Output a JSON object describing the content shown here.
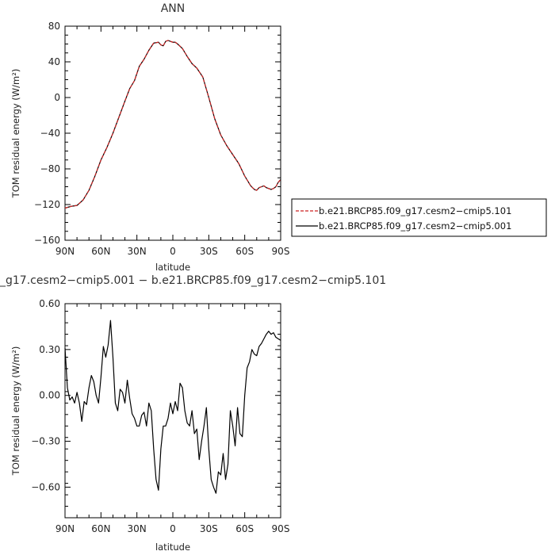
{
  "top_title": "ANN",
  "bottom_title": "_g17.cesm2−cmip5.001 − b.e21.BRCP85.f09_g17.cesm2−cmip5.101",
  "colors": {
    "series_101": "#cc2222",
    "series_001": "#000000",
    "axes": "#000000"
  },
  "chart_data": [
    {
      "type": "line",
      "title": "ANN",
      "xlabel": "latitude",
      "ylabel": "TOM residual energy (W/m²)",
      "xlim": [
        90,
        -90
      ],
      "ylim": [
        -160,
        80
      ],
      "x_tick_values": [
        90,
        60,
        30,
        0,
        -30,
        -60,
        -90
      ],
      "x_tick_labels": [
        "90N",
        "60N",
        "30N",
        "0",
        "30S",
        "60S",
        "90S"
      ],
      "y_tick_values": [
        80,
        40,
        0,
        -40,
        -80,
        -120,
        -160
      ],
      "y_tick_labels": [
        "80",
        "40",
        "0",
        "−40",
        "−80",
        "−120",
        "−160"
      ],
      "legend_placement": "right",
      "series": [
        {
          "name": "b.e21.BRCP85.f09_g17.cesm2−cmip5.101",
          "style": "dashed",
          "x": [
            90,
            85,
            80,
            75,
            70,
            65,
            60,
            55,
            50,
            45,
            40,
            36,
            32,
            28,
            24,
            20,
            16,
            12,
            10,
            8,
            6,
            4,
            2,
            0,
            -2,
            -4,
            -8,
            -12,
            -16,
            -20,
            -25,
            -30,
            -35,
            -40,
            -45,
            -50,
            -55,
            -60,
            -65,
            -68,
            -70,
            -72,
            -74,
            -76,
            -78,
            -80,
            -82,
            -84,
            -86,
            -88,
            -90
          ],
          "y": [
            -124,
            -122,
            -121,
            -115,
            -104,
            -88,
            -70,
            -56,
            -40,
            -22,
            -4,
            10,
            19,
            35,
            43,
            53,
            61,
            62,
            59,
            58,
            63,
            64,
            63,
            62,
            62,
            60,
            55,
            46,
            38,
            33,
            23,
            0,
            -24,
            -42,
            -54,
            -64,
            -74,
            -88,
            -99,
            -103,
            -104,
            -101,
            -100,
            -99,
            -101,
            -102,
            -103,
            -102,
            -100,
            -95,
            -92
          ]
        },
        {
          "name": "b.e21.BRCP85.f09_g17.cesm2−cmip5.001",
          "style": "solid",
          "x": [
            90,
            85,
            80,
            75,
            70,
            65,
            60,
            55,
            50,
            45,
            40,
            36,
            32,
            28,
            24,
            20,
            16,
            12,
            10,
            8,
            6,
            4,
            2,
            0,
            -2,
            -4,
            -8,
            -12,
            -16,
            -20,
            -25,
            -30,
            -35,
            -40,
            -45,
            -50,
            -55,
            -60,
            -65,
            -68,
            -70,
            -72,
            -74,
            -76,
            -78,
            -80,
            -82,
            -84,
            -86,
            -88,
            -90
          ],
          "y": [
            -124,
            -122,
            -121,
            -115,
            -104,
            -88,
            -70,
            -56,
            -40,
            -22,
            -4,
            10,
            19,
            35,
            43,
            53,
            61,
            62,
            59,
            58,
            63,
            64,
            63,
            62,
            62,
            60,
            55,
            46,
            38,
            33,
            23,
            0,
            -24,
            -42,
            -54,
            -64,
            -74,
            -88,
            -99,
            -103,
            -104,
            -101,
            -100,
            -99,
            -101,
            -102,
            -103,
            -102,
            -100,
            -95,
            -92
          ]
        }
      ]
    },
    {
      "type": "line",
      "title": "_g17.cesm2−cmip5.001 − b.e21.BRCP85.f09_g17.cesm2−cmip5.101",
      "xlabel": "latitude",
      "ylabel": "TOM residual energy (W/m²)",
      "xlim": [
        90,
        -90
      ],
      "ylim": [
        -0.8,
        0.6
      ],
      "x_tick_values": [
        90,
        60,
        30,
        0,
        -30,
        -60,
        -90
      ],
      "x_tick_labels": [
        "90N",
        "60N",
        "30N",
        "0",
        "30S",
        "60S",
        "90S"
      ],
      "y_tick_values": [
        0.6,
        0.3,
        0.0,
        -0.3,
        -0.6
      ],
      "y_tick_labels": [
        "0.60",
        "0.30",
        "0.00",
        "−0.30",
        "−0.60"
      ],
      "series": [
        {
          "name": "",
          "style": "solid",
          "x": [
            90,
            88,
            86,
            84,
            82,
            80,
            78,
            76,
            74,
            72,
            70,
            68,
            66,
            64,
            62,
            60,
            58,
            56,
            54,
            52,
            50,
            48,
            46,
            44,
            42,
            40,
            38,
            36,
            34,
            32,
            30,
            28,
            26,
            24,
            22,
            20,
            18,
            16,
            14,
            12,
            10,
            8,
            6,
            4,
            2,
            0,
            -2,
            -4,
            -6,
            -8,
            -10,
            -12,
            -14,
            -16,
            -18,
            -20,
            -22,
            -24,
            -26,
            -28,
            -30,
            -32,
            -34,
            -36,
            -38,
            -40,
            -42,
            -44,
            -46,
            -48,
            -50,
            -52,
            -54,
            -56,
            -58,
            -60,
            -62,
            -64,
            -66,
            -68,
            -70,
            -72,
            -74,
            -76,
            -78,
            -80,
            -82,
            -84,
            -86,
            -88,
            -90
          ],
          "y": [
            0.31,
            0.05,
            -0.03,
            -0.01,
            -0.05,
            0.02,
            -0.05,
            -0.17,
            -0.04,
            -0.06,
            0.05,
            0.13,
            0.09,
            0.0,
            -0.05,
            0.12,
            0.32,
            0.25,
            0.33,
            0.49,
            0.25,
            -0.05,
            -0.1,
            0.04,
            0.02,
            -0.05,
            0.1,
            -0.02,
            -0.12,
            -0.15,
            -0.2,
            -0.2,
            -0.13,
            -0.11,
            -0.2,
            -0.05,
            -0.1,
            -0.35,
            -0.55,
            -0.62,
            -0.35,
            -0.2,
            -0.2,
            -0.15,
            -0.05,
            -0.12,
            -0.04,
            -0.1,
            0.08,
            0.05,
            -0.1,
            -0.18,
            -0.2,
            -0.1,
            -0.25,
            -0.22,
            -0.42,
            -0.3,
            -0.2,
            -0.08,
            -0.35,
            -0.55,
            -0.6,
            -0.64,
            -0.5,
            -0.52,
            -0.38,
            -0.55,
            -0.45,
            -0.1,
            -0.2,
            -0.33,
            -0.08,
            -0.25,
            -0.27,
            0.0,
            0.18,
            0.22,
            0.3,
            0.27,
            0.26,
            0.32,
            0.34,
            0.37,
            0.4,
            0.42,
            0.4,
            0.41,
            0.38,
            0.37,
            0.36
          ]
        }
      ]
    }
  ]
}
